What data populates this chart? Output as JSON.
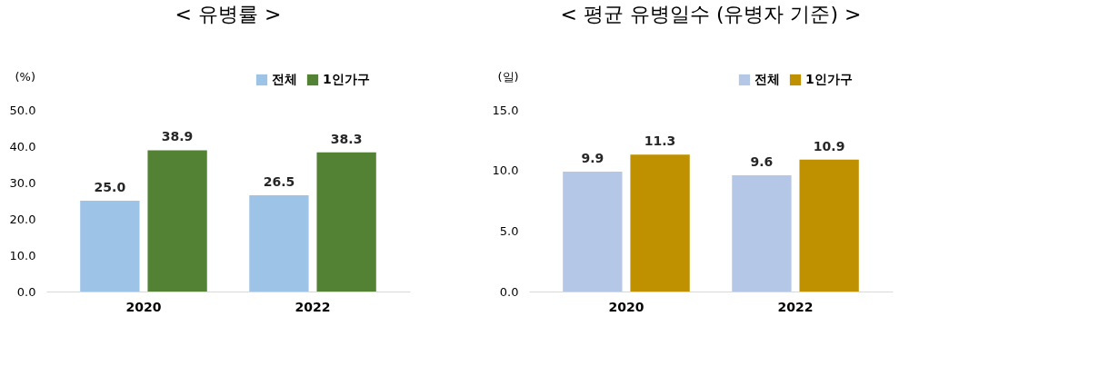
{
  "chart_data": [
    {
      "type": "bar",
      "title": "< 유병률 >",
      "ylabel": "(%)",
      "categories": [
        "2020",
        "2022"
      ],
      "series": [
        {
          "name": "전체",
          "color": "#9dc3e6",
          "values": [
            25.0,
            26.5
          ],
          "value_labels": [
            "25.0",
            "26.5"
          ]
        },
        {
          "name": "1인가구",
          "color": "#548235",
          "values": [
            38.9,
            38.3
          ],
          "value_labels": [
            "38.9",
            "38.3"
          ]
        }
      ],
      "ylim": [
        0,
        50
      ],
      "yticks": [
        {
          "value": 0,
          "label": "0.0"
        },
        {
          "value": 10,
          "label": "10.0"
        },
        {
          "value": 20,
          "label": "20.0"
        },
        {
          "value": 30,
          "label": "30.0"
        },
        {
          "value": 40,
          "label": "40.0"
        },
        {
          "value": 50,
          "label": "50.0"
        }
      ],
      "legend": "top right",
      "grid": false
    },
    {
      "type": "bar",
      "title": "< 평균 유병일수 (유병자 기준) >",
      "ylabel": "(일)",
      "categories": [
        "2020",
        "2022"
      ],
      "series": [
        {
          "name": "전체",
          "color": "#b4c7e7",
          "values": [
            9.9,
            9.6
          ],
          "value_labels": [
            "9.9",
            "9.6"
          ]
        },
        {
          "name": "1인가구",
          "color": "#bf9000",
          "values": [
            11.3,
            10.9
          ],
          "value_labels": [
            "11.3",
            "10.9"
          ]
        }
      ],
      "ylim": [
        0,
        15
      ],
      "yticks": [
        {
          "value": 0,
          "label": "0.0"
        },
        {
          "value": 5,
          "label": "5.0"
        },
        {
          "value": 10,
          "label": "10.0"
        },
        {
          "value": 15,
          "label": "15.0"
        }
      ],
      "legend": "top right",
      "grid": false
    }
  ]
}
